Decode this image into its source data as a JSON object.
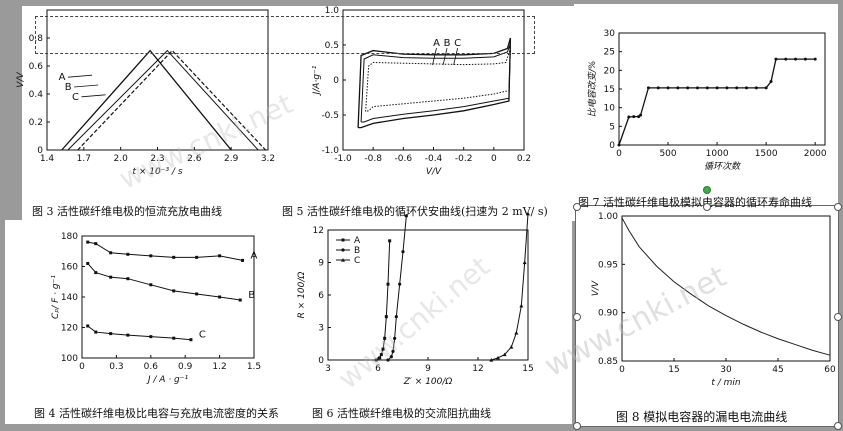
{
  "colors": {
    "background_gray": "#9a9a9a",
    "ink": "#111111",
    "selection_handle_green": "#3fae49"
  },
  "watermark": "www.cnki.net",
  "captions": {
    "fig3": "图 3   活性碳纤维电极的恒流充放电曲线",
    "fig5": "图 5   活性碳纤维电极的循环伏安曲线(扫速为 2 mV/ s)",
    "fig7": "图 7   活性碳纤维电极模拟电容器的循环寿命曲线",
    "fig4": "图 4   活性碳纤维电极比电容与充放电流密度的关系",
    "fig6": "图 6   活性碳纤维电极的交流阻抗曲线",
    "fig8": "图 8   模拟电容器的漏电电流曲线"
  },
  "chart_data": [
    {
      "id": "fig3",
      "type": "line",
      "title": "",
      "xlabel": "t × 10⁻³ / s",
      "ylabel": "V/V",
      "xlim": [
        1.4,
        3.2
      ],
      "ylim": [
        0,
        1.0
      ],
      "xticks": [
        "1.4",
        "1.7",
        "2.0",
        "2.3",
        "2.6",
        "2.9",
        "3.2"
      ],
      "yticks": [
        "0",
        "0.2",
        "0.4",
        "0.6",
        "0.8"
      ],
      "series": [
        {
          "name": "A",
          "x": [
            1.52,
            2.24,
            2.9
          ],
          "y": [
            0.0,
            0.71,
            0.0
          ]
        },
        {
          "name": "B",
          "x": [
            1.57,
            2.38,
            3.12
          ],
          "y": [
            0.0,
            0.71,
            0.0
          ]
        },
        {
          "name": "C",
          "x": [
            1.65,
            2.42,
            3.18
          ],
          "y": [
            0.0,
            0.71,
            0.0
          ]
        }
      ],
      "series_labels": [
        "A",
        "B",
        "C"
      ]
    },
    {
      "id": "fig5",
      "type": "line",
      "title": "",
      "xlabel": "V/V",
      "ylabel": "J/A·g⁻¹",
      "xlim": [
        -1.0,
        0.2
      ],
      "ylim": [
        -1.0,
        1.0
      ],
      "xticks": [
        "-1.0",
        "-0.8",
        "-0.6",
        "-0.4",
        "-0.2",
        "0",
        "0.2"
      ],
      "yticks": [
        "-1.0",
        "-0.5",
        "0",
        "0.5",
        "1.0"
      ],
      "series": [
        {
          "name": "A",
          "x": [
            -0.9,
            -0.88,
            -0.8,
            -0.6,
            -0.4,
            -0.2,
            0.0,
            0.09,
            0.11,
            0.1,
            0.0,
            -0.2,
            -0.4,
            -0.6,
            -0.8,
            -0.88,
            -0.9
          ],
          "y": [
            -0.68,
            0.35,
            0.42,
            0.37,
            0.36,
            0.36,
            0.38,
            0.45,
            0.6,
            -0.3,
            -0.35,
            -0.44,
            -0.5,
            -0.55,
            -0.62,
            -0.68,
            -0.68
          ]
        },
        {
          "name": "B",
          "x": [
            -0.88,
            -0.86,
            -0.8,
            -0.6,
            -0.4,
            -0.2,
            0.0,
            0.09,
            0.11,
            0.1,
            0.0,
            -0.2,
            -0.4,
            -0.6,
            -0.8,
            -0.86,
            -0.88
          ],
          "y": [
            -0.6,
            0.3,
            0.36,
            0.32,
            0.31,
            0.31,
            0.33,
            0.4,
            0.52,
            -0.26,
            -0.3,
            -0.38,
            -0.44,
            -0.49,
            -0.55,
            -0.6,
            -0.6
          ]
        },
        {
          "name": "C",
          "x": [
            -0.85,
            -0.83,
            -0.8,
            -0.6,
            -0.4,
            -0.2,
            0.0,
            0.08,
            0.11,
            0.1,
            0.0,
            -0.2,
            -0.4,
            -0.6,
            -0.8,
            -0.83,
            -0.85
          ],
          "y": [
            -0.45,
            0.2,
            0.25,
            0.24,
            0.23,
            0.22,
            0.23,
            0.25,
            0.45,
            -0.15,
            -0.2,
            -0.26,
            -0.3,
            -0.34,
            -0.38,
            -0.44,
            -0.45
          ]
        }
      ],
      "series_labels": [
        "A",
        "B",
        "C"
      ]
    },
    {
      "id": "fig7",
      "type": "line",
      "title": "",
      "xlabel": "循环次数",
      "ylabel": "比电容改变/%",
      "xlim": [
        0,
        2100
      ],
      "ylim": [
        0,
        30
      ],
      "xticks": [
        "0",
        "500",
        "1000",
        "1500",
        "2000"
      ],
      "yticks": [
        "0",
        "5",
        "10",
        "15",
        "20",
        "25",
        "30"
      ],
      "x": [
        0,
        100,
        150,
        200,
        220,
        300,
        400,
        500,
        600,
        700,
        800,
        900,
        1000,
        1100,
        1200,
        1300,
        1400,
        1500,
        1550,
        1600,
        1700,
        1800,
        1900,
        2000
      ],
      "y": [
        0,
        7.5,
        7.6,
        7.6,
        8,
        15.3,
        15.3,
        15.3,
        15.3,
        15.3,
        15.3,
        15.3,
        15.3,
        15.3,
        15.3,
        15.3,
        15.3,
        15.3,
        17,
        23,
        23,
        23,
        23,
        23
      ]
    },
    {
      "id": "fig4",
      "type": "line",
      "title": "",
      "xlabel": "J / A · g⁻¹",
      "ylabel": "Cₚ/ F · g⁻¹",
      "xlim": [
        0,
        1.5
      ],
      "ylim": [
        100,
        180
      ],
      "xticks": [
        "0",
        "0.3",
        "0.6",
        "0.9",
        "1.2",
        "1.5"
      ],
      "yticks": [
        "100",
        "120",
        "140",
        "160",
        "180"
      ],
      "series": [
        {
          "name": "A",
          "x": [
            0.05,
            0.12,
            0.25,
            0.4,
            0.6,
            0.8,
            1.0,
            1.2,
            1.4
          ],
          "y": [
            176,
            175,
            169,
            168,
            167,
            166,
            166,
            167,
            164
          ]
        },
        {
          "name": "B",
          "x": [
            0.05,
            0.12,
            0.25,
            0.4,
            0.6,
            0.8,
            1.0,
            1.2,
            1.38
          ],
          "y": [
            162,
            156,
            153,
            152,
            148,
            144,
            142,
            140,
            138
          ]
        },
        {
          "name": "C",
          "x": [
            0.05,
            0.12,
            0.25,
            0.4,
            0.6,
            0.8,
            0.95
          ],
          "y": [
            121,
            117,
            116,
            115,
            114,
            113,
            112
          ]
        }
      ],
      "series_labels": [
        "A",
        "B",
        "C"
      ]
    },
    {
      "id": "fig6",
      "type": "scatter",
      "title": "",
      "xlabel": "Z′ × 100/Ω",
      "ylabel": "R × 100/Ω",
      "xlim": [
        3,
        15
      ],
      "ylim": [
        0,
        12
      ],
      "xticks": [
        "3",
        "6",
        "9",
        "12",
        "15"
      ],
      "yticks": [
        "0",
        "3",
        "6",
        "9",
        "12"
      ],
      "legend": [
        "A",
        "B",
        "C"
      ],
      "legend_position": "top-left",
      "series": [
        {
          "name": "A",
          "x": [
            5.9,
            6.1,
            6.2,
            6.3,
            6.4,
            6.5,
            6.6,
            6.7
          ],
          "y": [
            0,
            0.2,
            0.5,
            1,
            2,
            4,
            7,
            11
          ]
        },
        {
          "name": "B",
          "x": [
            6.6,
            6.8,
            6.9,
            7.0,
            7.1,
            7.3,
            7.5,
            7.7
          ],
          "y": [
            0,
            0.3,
            0.8,
            2,
            4,
            7,
            10,
            13.3
          ]
        },
        {
          "name": "C",
          "x": [
            12.8,
            13.2,
            13.6,
            14.0,
            14.3,
            14.6,
            14.8,
            15.0
          ],
          "y": [
            0,
            0.2,
            0.5,
            1.2,
            2.5,
            5,
            9,
            13.5
          ]
        }
      ]
    },
    {
      "id": "fig8",
      "type": "line",
      "title": "",
      "xlabel": "t / min",
      "ylabel": "V/V",
      "xlim": [
        0,
        60
      ],
      "ylim": [
        0.85,
        1.0
      ],
      "xticks": [
        "0",
        "15",
        "30",
        "45",
        "60"
      ],
      "yticks": [
        "0.85",
        "0.90",
        "0.95",
        "1.00"
      ],
      "x": [
        0,
        2,
        5,
        10,
        15,
        20,
        25,
        30,
        35,
        40,
        45,
        50,
        55,
        60
      ],
      "y": [
        0.998,
        0.985,
        0.968,
        0.948,
        0.932,
        0.919,
        0.907,
        0.897,
        0.888,
        0.88,
        0.873,
        0.867,
        0.861,
        0.856
      ]
    }
  ]
}
